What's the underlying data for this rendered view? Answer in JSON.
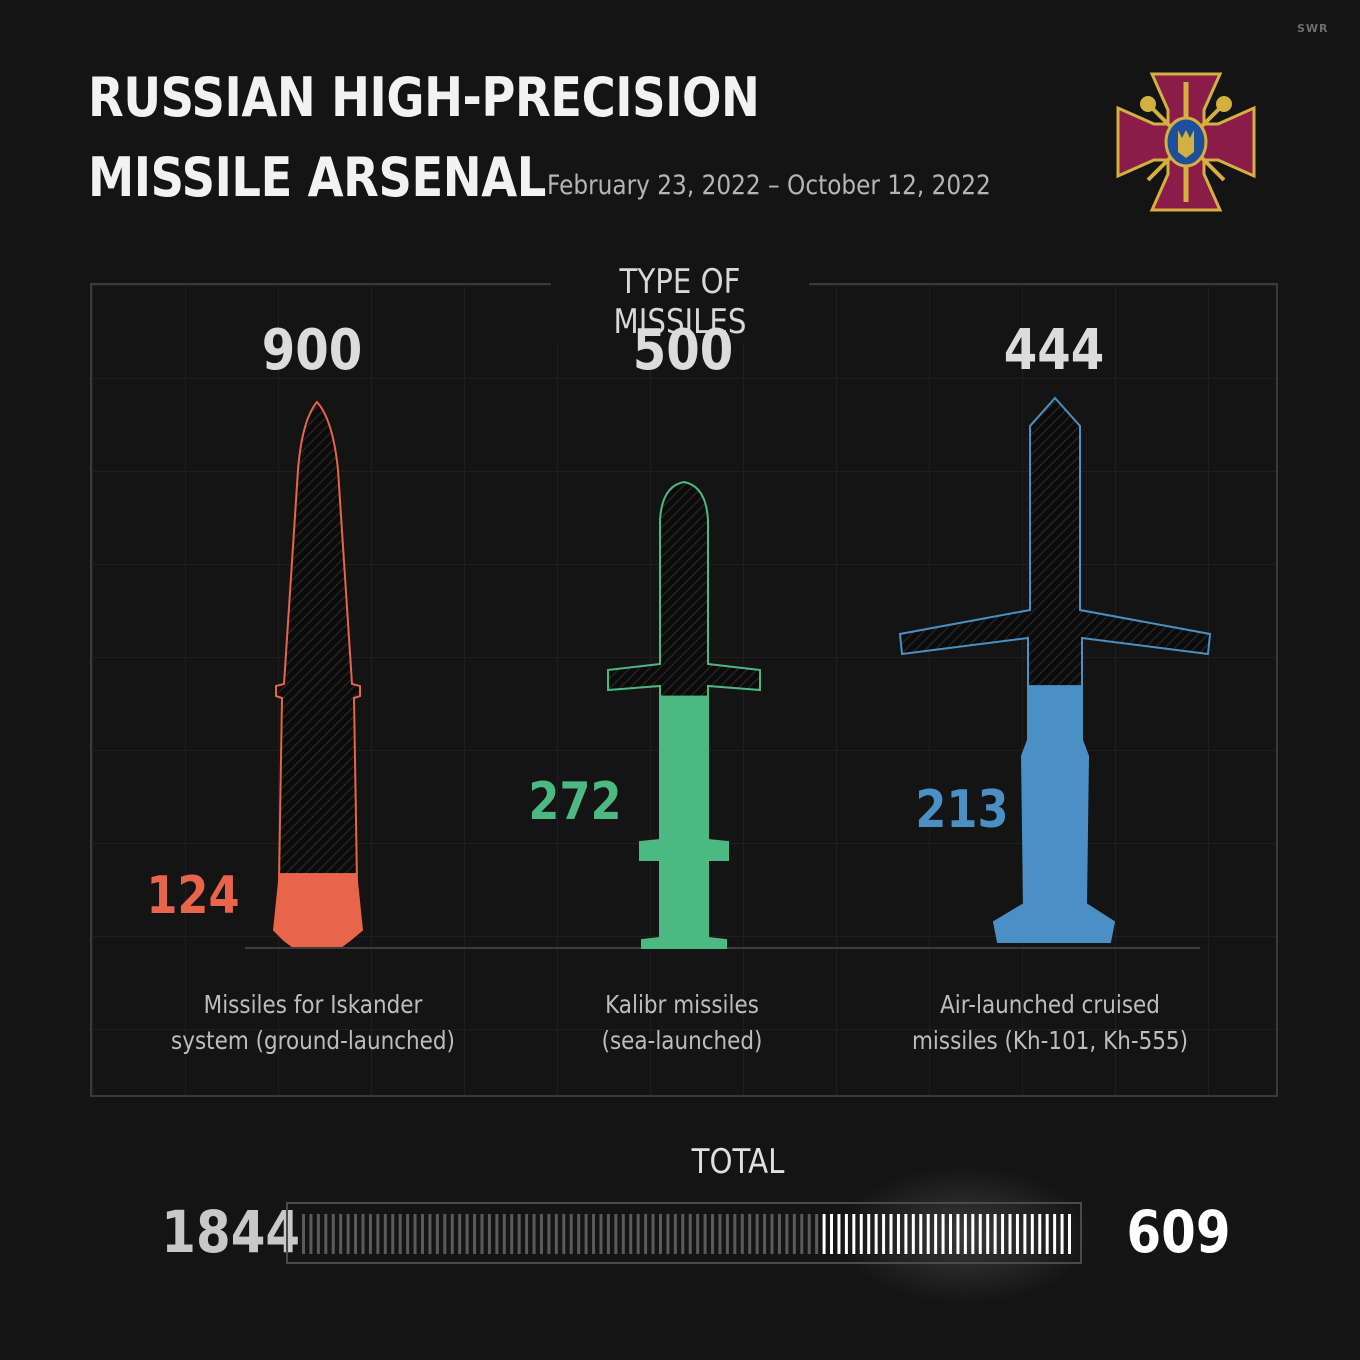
{
  "watermark": "SWR",
  "header": {
    "title_line1": "RUSSIAN HIGH-PRECISION",
    "title_line2": "MISSILE ARSENAL",
    "date_range": "February 23, 2022 – October 12, 2022"
  },
  "panel_title": "TYPE OF MISSILES",
  "colors": {
    "iskander": "#e8644a",
    "kalibr": "#4cb882",
    "air": "#4a90c4",
    "emblem": "#8a1c4a",
    "gold": "#d4b040"
  },
  "chart_data": {
    "type": "bar",
    "title": "TYPE OF MISSILES",
    "categories": [
      "Missiles for Iskander system (ground-launched)",
      "Kalibr missiles (sea-launched)",
      "Air-launched cruised missiles (Kh-101, Kh-555)"
    ],
    "caption_lines": [
      [
        "Missiles for Iskander",
        "system (ground-launched)"
      ],
      [
        "Kalibr missiles",
        "(sea-launched)"
      ],
      [
        "Air-launched cruised",
        "missiles (Kh-101, Kh-555)"
      ]
    ],
    "series": [
      {
        "values": [
          900,
          500,
          444
        ]
      },
      {
        "values": [
          124,
          272,
          213
        ]
      }
    ],
    "totals": {
      "total": 1844,
      "remaining": 609
    },
    "total_label": "TOTAL"
  }
}
